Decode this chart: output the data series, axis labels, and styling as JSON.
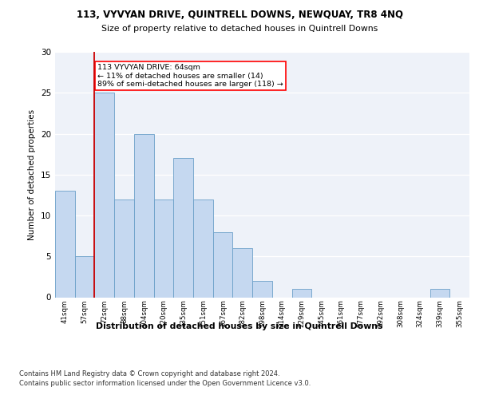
{
  "title1": "113, VYVYAN DRIVE, QUINTRELL DOWNS, NEWQUAY, TR8 4NQ",
  "title2": "Size of property relative to detached houses in Quintrell Downs",
  "xlabel": "Distribution of detached houses by size in Quintrell Downs",
  "ylabel": "Number of detached properties",
  "bins": [
    "41sqm",
    "57sqm",
    "72sqm",
    "88sqm",
    "104sqm",
    "120sqm",
    "135sqm",
    "151sqm",
    "167sqm",
    "182sqm",
    "198sqm",
    "214sqm",
    "229sqm",
    "245sqm",
    "261sqm",
    "277sqm",
    "292sqm",
    "308sqm",
    "324sqm",
    "339sqm",
    "355sqm"
  ],
  "values": [
    13,
    5,
    25,
    12,
    20,
    12,
    17,
    12,
    8,
    6,
    2,
    0,
    1,
    0,
    0,
    0,
    0,
    0,
    0,
    1,
    0
  ],
  "bar_color": "#c5d8f0",
  "bar_edge_color": "#6a9fc8",
  "red_line_x": 1.5,
  "annotation_text": "113 VYVYAN DRIVE: 64sqm\n← 11% of detached houses are smaller (14)\n89% of semi-detached houses are larger (118) →",
  "annotation_box_color": "white",
  "annotation_box_edge_color": "red",
  "red_line_color": "#cc0000",
  "background_color": "#eef2f9",
  "ylim": [
    0,
    30
  ],
  "yticks": [
    0,
    5,
    10,
    15,
    20,
    25,
    30
  ],
  "footer1": "Contains HM Land Registry data © Crown copyright and database right 2024.",
  "footer2": "Contains public sector information licensed under the Open Government Licence v3.0."
}
